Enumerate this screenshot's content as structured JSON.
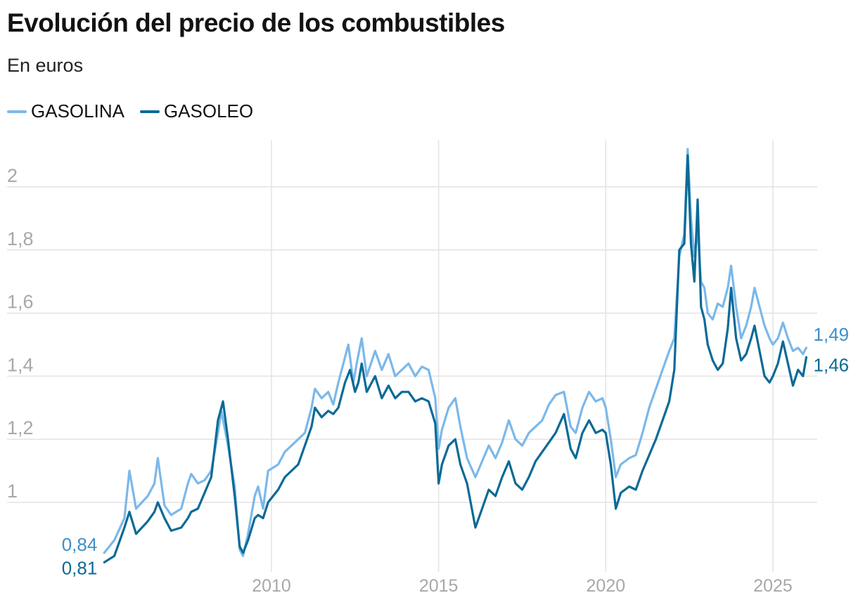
{
  "title": "Evolución del precio de los combustibles",
  "subtitle": "En euros",
  "legend": [
    {
      "label": "GASOLINA",
      "color": "#7bb8ea"
    },
    {
      "label": "GASOLEO",
      "color": "#0b6a96"
    }
  ],
  "chart_data": {
    "type": "line",
    "xlim": [
      2005.0,
      2026.2
    ],
    "ylim": [
      0.8,
      2.15
    ],
    "yticks": [
      {
        "value": 1.0,
        "label": "1"
      },
      {
        "value": 1.2,
        "label": "1,2"
      },
      {
        "value": 1.4,
        "label": "1,4"
      },
      {
        "value": 1.6,
        "label": "1,6"
      },
      {
        "value": 1.8,
        "label": "1,8"
      },
      {
        "value": 2.0,
        "label": "2"
      }
    ],
    "xticks": [
      {
        "value": 2010,
        "label": "2010"
      },
      {
        "value": 2015,
        "label": "2015"
      },
      {
        "value": 2020,
        "label": "2020"
      },
      {
        "value": 2025,
        "label": "2025"
      }
    ],
    "grid": true,
    "legend_position": "top-left",
    "series": [
      {
        "name": "GASOLINA",
        "color": "#7bb8ea",
        "start_label": "0,84",
        "end_label": "1,49",
        "points": [
          [
            2005.0,
            0.84
          ],
          [
            2005.3,
            0.88
          ],
          [
            2005.6,
            0.95
          ],
          [
            2005.75,
            1.1
          ],
          [
            2005.95,
            0.98
          ],
          [
            2006.3,
            1.02
          ],
          [
            2006.5,
            1.06
          ],
          [
            2006.6,
            1.14
          ],
          [
            2006.8,
            0.99
          ],
          [
            2007.0,
            0.96
          ],
          [
            2007.3,
            0.98
          ],
          [
            2007.5,
            1.06
          ],
          [
            2007.6,
            1.09
          ],
          [
            2007.8,
            1.06
          ],
          [
            2008.0,
            1.07
          ],
          [
            2008.2,
            1.1
          ],
          [
            2008.4,
            1.22
          ],
          [
            2008.5,
            1.29
          ],
          [
            2008.7,
            1.18
          ],
          [
            2008.9,
            1.05
          ],
          [
            2009.05,
            0.85
          ],
          [
            2009.15,
            0.83
          ],
          [
            2009.3,
            0.9
          ],
          [
            2009.5,
            1.02
          ],
          [
            2009.6,
            1.05
          ],
          [
            2009.75,
            0.98
          ],
          [
            2009.9,
            1.1
          ],
          [
            2010.2,
            1.12
          ],
          [
            2010.4,
            1.16
          ],
          [
            2010.6,
            1.18
          ],
          [
            2010.8,
            1.2
          ],
          [
            2011.0,
            1.22
          ],
          [
            2011.2,
            1.3
          ],
          [
            2011.3,
            1.36
          ],
          [
            2011.5,
            1.33
          ],
          [
            2011.7,
            1.35
          ],
          [
            2011.85,
            1.31
          ],
          [
            2012.0,
            1.38
          ],
          [
            2012.2,
            1.46
          ],
          [
            2012.3,
            1.5
          ],
          [
            2012.45,
            1.38
          ],
          [
            2012.55,
            1.44
          ],
          [
            2012.7,
            1.52
          ],
          [
            2012.85,
            1.4
          ],
          [
            2013.1,
            1.48
          ],
          [
            2013.3,
            1.42
          ],
          [
            2013.5,
            1.47
          ],
          [
            2013.7,
            1.4
          ],
          [
            2013.9,
            1.42
          ],
          [
            2014.1,
            1.44
          ],
          [
            2014.3,
            1.4
          ],
          [
            2014.5,
            1.43
          ],
          [
            2014.7,
            1.42
          ],
          [
            2014.9,
            1.33
          ],
          [
            2015.0,
            1.17
          ],
          [
            2015.1,
            1.23
          ],
          [
            2015.3,
            1.3
          ],
          [
            2015.5,
            1.33
          ],
          [
            2015.65,
            1.24
          ],
          [
            2015.85,
            1.14
          ],
          [
            2016.1,
            1.08
          ],
          [
            2016.3,
            1.13
          ],
          [
            2016.5,
            1.18
          ],
          [
            2016.7,
            1.14
          ],
          [
            2016.9,
            1.19
          ],
          [
            2017.1,
            1.26
          ],
          [
            2017.3,
            1.2
          ],
          [
            2017.5,
            1.18
          ],
          [
            2017.7,
            1.22
          ],
          [
            2017.9,
            1.24
          ],
          [
            2018.1,
            1.26
          ],
          [
            2018.3,
            1.31
          ],
          [
            2018.5,
            1.34
          ],
          [
            2018.75,
            1.35
          ],
          [
            2018.95,
            1.24
          ],
          [
            2019.1,
            1.22
          ],
          [
            2019.3,
            1.3
          ],
          [
            2019.5,
            1.35
          ],
          [
            2019.7,
            1.32
          ],
          [
            2019.9,
            1.33
          ],
          [
            2020.0,
            1.3
          ],
          [
            2020.15,
            1.2
          ],
          [
            2020.3,
            1.08
          ],
          [
            2020.45,
            1.12
          ],
          [
            2020.7,
            1.14
          ],
          [
            2020.9,
            1.15
          ],
          [
            2021.1,
            1.22
          ],
          [
            2021.3,
            1.3
          ],
          [
            2021.5,
            1.36
          ],
          [
            2021.7,
            1.42
          ],
          [
            2021.9,
            1.48
          ],
          [
            2022.05,
            1.52
          ],
          [
            2022.2,
            1.78
          ],
          [
            2022.35,
            1.85
          ],
          [
            2022.45,
            2.12
          ],
          [
            2022.55,
            1.9
          ],
          [
            2022.65,
            1.78
          ],
          [
            2022.75,
            1.86
          ],
          [
            2022.85,
            1.7
          ],
          [
            2022.95,
            1.68
          ],
          [
            2023.05,
            1.6
          ],
          [
            2023.2,
            1.58
          ],
          [
            2023.35,
            1.63
          ],
          [
            2023.5,
            1.62
          ],
          [
            2023.65,
            1.68
          ],
          [
            2023.75,
            1.75
          ],
          [
            2023.9,
            1.62
          ],
          [
            2024.05,
            1.52
          ],
          [
            2024.2,
            1.56
          ],
          [
            2024.35,
            1.62
          ],
          [
            2024.45,
            1.68
          ],
          [
            2024.6,
            1.62
          ],
          [
            2024.75,
            1.56
          ],
          [
            2024.9,
            1.52
          ],
          [
            2025.0,
            1.5
          ],
          [
            2025.15,
            1.52
          ],
          [
            2025.3,
            1.57
          ],
          [
            2025.45,
            1.52
          ],
          [
            2025.6,
            1.48
          ],
          [
            2025.75,
            1.49
          ],
          [
            2025.9,
            1.47
          ],
          [
            2026.0,
            1.49
          ]
        ]
      },
      {
        "name": "GASOLEO",
        "color": "#0b6a96",
        "start_label": "0,81",
        "end_label": "1,46",
        "points": [
          [
            2005.0,
            0.81
          ],
          [
            2005.3,
            0.83
          ],
          [
            2005.6,
            0.92
          ],
          [
            2005.75,
            0.97
          ],
          [
            2005.95,
            0.9
          ],
          [
            2006.3,
            0.94
          ],
          [
            2006.5,
            0.97
          ],
          [
            2006.6,
            1.0
          ],
          [
            2006.8,
            0.95
          ],
          [
            2007.0,
            0.91
          ],
          [
            2007.3,
            0.92
          ],
          [
            2007.5,
            0.95
          ],
          [
            2007.6,
            0.97
          ],
          [
            2007.8,
            0.98
          ],
          [
            2008.0,
            1.03
          ],
          [
            2008.2,
            1.08
          ],
          [
            2008.4,
            1.26
          ],
          [
            2008.55,
            1.32
          ],
          [
            2008.7,
            1.2
          ],
          [
            2008.9,
            1.02
          ],
          [
            2009.05,
            0.86
          ],
          [
            2009.15,
            0.84
          ],
          [
            2009.3,
            0.88
          ],
          [
            2009.5,
            0.95
          ],
          [
            2009.6,
            0.96
          ],
          [
            2009.75,
            0.95
          ],
          [
            2009.9,
            1.0
          ],
          [
            2010.2,
            1.04
          ],
          [
            2010.4,
            1.08
          ],
          [
            2010.6,
            1.1
          ],
          [
            2010.8,
            1.12
          ],
          [
            2011.0,
            1.18
          ],
          [
            2011.2,
            1.24
          ],
          [
            2011.3,
            1.3
          ],
          [
            2011.5,
            1.27
          ],
          [
            2011.7,
            1.29
          ],
          [
            2011.85,
            1.28
          ],
          [
            2012.0,
            1.3
          ],
          [
            2012.2,
            1.38
          ],
          [
            2012.35,
            1.42
          ],
          [
            2012.5,
            1.35
          ],
          [
            2012.6,
            1.38
          ],
          [
            2012.7,
            1.44
          ],
          [
            2012.85,
            1.35
          ],
          [
            2013.1,
            1.4
          ],
          [
            2013.3,
            1.33
          ],
          [
            2013.5,
            1.37
          ],
          [
            2013.7,
            1.33
          ],
          [
            2013.9,
            1.35
          ],
          [
            2014.1,
            1.35
          ],
          [
            2014.3,
            1.32
          ],
          [
            2014.5,
            1.33
          ],
          [
            2014.7,
            1.32
          ],
          [
            2014.9,
            1.25
          ],
          [
            2015.0,
            1.06
          ],
          [
            2015.1,
            1.12
          ],
          [
            2015.3,
            1.18
          ],
          [
            2015.5,
            1.2
          ],
          [
            2015.65,
            1.12
          ],
          [
            2015.85,
            1.06
          ],
          [
            2016.1,
            0.92
          ],
          [
            2016.3,
            0.98
          ],
          [
            2016.5,
            1.04
          ],
          [
            2016.7,
            1.02
          ],
          [
            2016.9,
            1.08
          ],
          [
            2017.1,
            1.13
          ],
          [
            2017.3,
            1.06
          ],
          [
            2017.5,
            1.04
          ],
          [
            2017.7,
            1.08
          ],
          [
            2017.9,
            1.13
          ],
          [
            2018.1,
            1.16
          ],
          [
            2018.3,
            1.19
          ],
          [
            2018.5,
            1.22
          ],
          [
            2018.75,
            1.28
          ],
          [
            2018.95,
            1.17
          ],
          [
            2019.1,
            1.14
          ],
          [
            2019.3,
            1.22
          ],
          [
            2019.5,
            1.26
          ],
          [
            2019.7,
            1.22
          ],
          [
            2019.9,
            1.23
          ],
          [
            2020.0,
            1.22
          ],
          [
            2020.15,
            1.12
          ],
          [
            2020.3,
            0.98
          ],
          [
            2020.45,
            1.03
          ],
          [
            2020.7,
            1.05
          ],
          [
            2020.9,
            1.04
          ],
          [
            2021.1,
            1.1
          ],
          [
            2021.3,
            1.15
          ],
          [
            2021.5,
            1.2
          ],
          [
            2021.7,
            1.26
          ],
          [
            2021.9,
            1.32
          ],
          [
            2022.05,
            1.42
          ],
          [
            2022.2,
            1.8
          ],
          [
            2022.35,
            1.82
          ],
          [
            2022.45,
            2.1
          ],
          [
            2022.55,
            1.82
          ],
          [
            2022.65,
            1.7
          ],
          [
            2022.75,
            1.96
          ],
          [
            2022.85,
            1.62
          ],
          [
            2022.95,
            1.58
          ],
          [
            2023.05,
            1.5
          ],
          [
            2023.2,
            1.45
          ],
          [
            2023.35,
            1.42
          ],
          [
            2023.5,
            1.44
          ],
          [
            2023.65,
            1.55
          ],
          [
            2023.75,
            1.68
          ],
          [
            2023.9,
            1.52
          ],
          [
            2024.05,
            1.45
          ],
          [
            2024.2,
            1.47
          ],
          [
            2024.35,
            1.52
          ],
          [
            2024.45,
            1.56
          ],
          [
            2024.6,
            1.48
          ],
          [
            2024.75,
            1.4
          ],
          [
            2024.9,
            1.38
          ],
          [
            2025.0,
            1.4
          ],
          [
            2025.15,
            1.44
          ],
          [
            2025.3,
            1.51
          ],
          [
            2025.45,
            1.44
          ],
          [
            2025.6,
            1.37
          ],
          [
            2025.75,
            1.42
          ],
          [
            2025.9,
            1.4
          ],
          [
            2026.0,
            1.46
          ]
        ]
      }
    ]
  }
}
